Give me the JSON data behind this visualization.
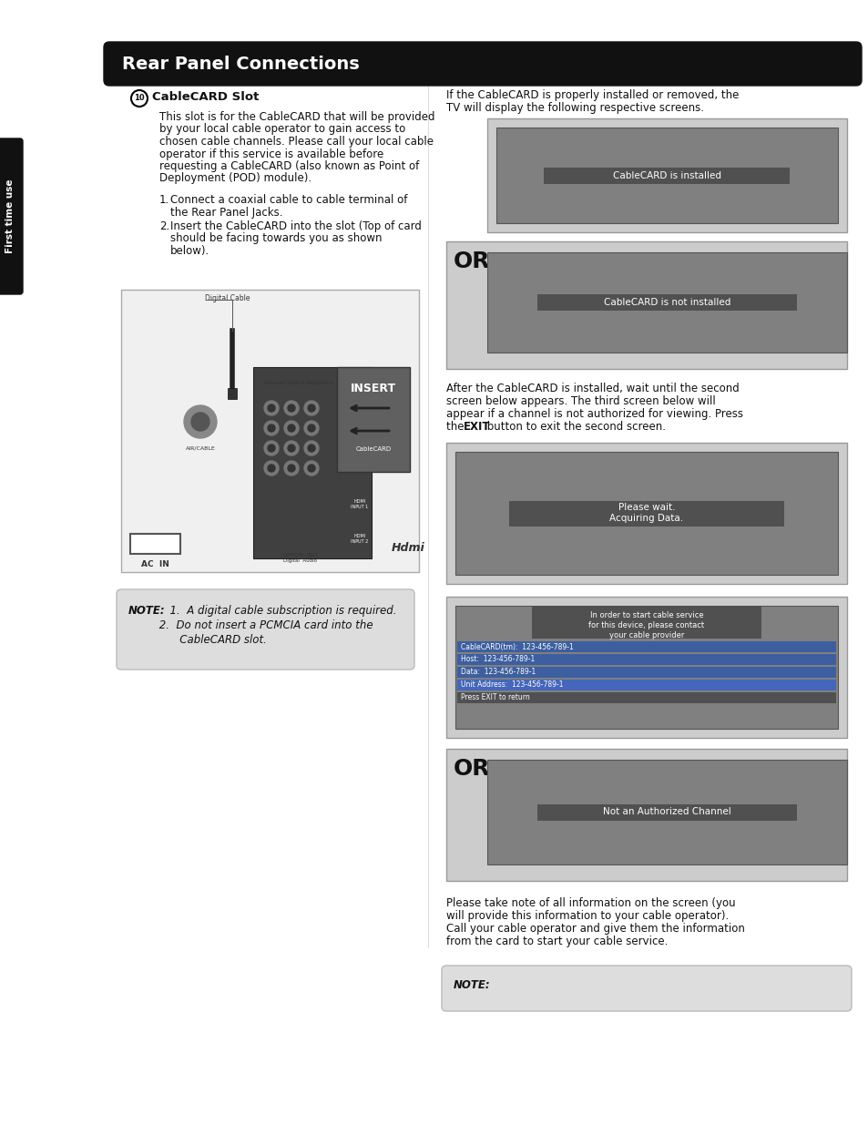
{
  "title": "Rear Panel Connections",
  "sidebar_text": "First time use",
  "bg_color": "#ffffff",
  "header_bg": "#111111",
  "header_text_color": "#ffffff",
  "header_fontsize": 14,
  "sidebar_bg": "#111111",
  "sidebar_text_color": "#ffffff",
  "body_text_color": "#111111",
  "screen_bg_outer": "#cccccc",
  "screen_bg_inner": "#808080",
  "screen_label_bg": "#505050",
  "screen_label_text": "#ffffff",
  "note_bg": "#dddddd",
  "or_fontsize": 18,
  "body_fontsize": 8.5,
  "note_fontsize": 8.5,
  "cablecard_title": "CableCARD Slot",
  "intro_text_line1": "If the CableCARD is properly installed or removed, the",
  "intro_text_line2": "TV will display the following respective screens.",
  "screen1_label": "CableCARD is installed",
  "screen2_label": "CableCARD is not installed",
  "screen3_label_line1": "Acquiring Data.",
  "screen3_label_line2": "Please wait.",
  "screen4_top_line1": "In order to start cable service",
  "screen4_top_line2": "for this device, please contact",
  "screen4_top_line3": "your cable provider",
  "screen4_info_lines": [
    "CableCARD(tm):  123-456-789-1",
    "Host:  123-456-789-1",
    "Data:  123-456-789-1",
    "Unit Address:  123-456-789-1",
    "Press EXIT to return"
  ],
  "screen5_label": "Not an Authorized Channel",
  "body_lines": [
    "This slot is for the CableCARD that will be provided",
    "by your local cable operator to gain access to",
    "chosen cable channels. Please call your local cable",
    "operator if this service is available before",
    "requesting a CableCARD (also known as Point of",
    "Deployment (POD) module)."
  ],
  "step1_line1": "Connect a coaxial cable to cable terminal of",
  "step1_line2": "the Rear Panel Jacks.",
  "step2_line1": "Insert the CableCARD into the slot (Top of card",
  "step2_line2": "should be facing towards you as shown",
  "step2_line3": "below).",
  "after_line1": "After the CableCARD is installed, wait until the second",
  "after_line2": "screen below appears. The third screen below will",
  "after_line3": "appear if a channel is not authorized for viewing. Press",
  "after_line4_pre": "the ",
  "after_line4_bold": "EXIT",
  "after_line4_post": " button to exit the second screen.",
  "bottom_line1": "Please take note of all information on the screen (you",
  "bottom_line2": "will provide this information to your cable operator).",
  "bottom_line3": "Call your cable operator and give them the information",
  "bottom_line4": "from the card to start your cable service.",
  "note1_bold": "NOTE:",
  "note1_italic1": "  1.  A digital cable subscription is required.",
  "note1_italic2": "         2.  Do not insert a PCMCIA card into the",
  "note1_italic3": "               CableCARD slot.",
  "note2_bold": "NOTE:",
  "digital_cable_label": "Digital Cable"
}
